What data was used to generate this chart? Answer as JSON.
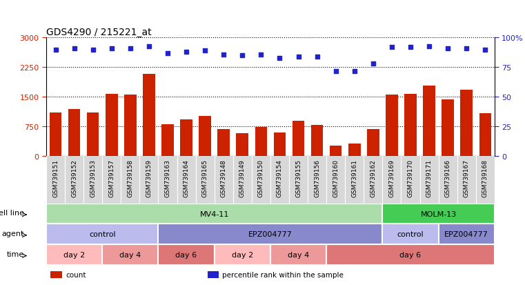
{
  "title": "GDS4290 / 215221_at",
  "samples": [
    "GSM739151",
    "GSM739152",
    "GSM739153",
    "GSM739157",
    "GSM739158",
    "GSM739159",
    "GSM739163",
    "GSM739164",
    "GSM739165",
    "GSM739148",
    "GSM739149",
    "GSM739150",
    "GSM739154",
    "GSM739155",
    "GSM739156",
    "GSM739160",
    "GSM739161",
    "GSM739162",
    "GSM739169",
    "GSM739170",
    "GSM739171",
    "GSM739166",
    "GSM739167",
    "GSM739168"
  ],
  "counts": [
    1100,
    1200,
    1100,
    1580,
    1560,
    2080,
    800,
    930,
    1020,
    680,
    580,
    730,
    600,
    900,
    790,
    270,
    320,
    680,
    1560,
    1580,
    1780,
    1430,
    1680,
    1080
  ],
  "percentiles": [
    90,
    91,
    90,
    91,
    91,
    93,
    87,
    88,
    89,
    86,
    85,
    86,
    83,
    84,
    84,
    72,
    72,
    78,
    92,
    92,
    93,
    91,
    91,
    90
  ],
  "bar_color": "#cc2200",
  "dot_color": "#2222cc",
  "bg_color": "#ffffff",
  "xtick_bg": "#d8d8d8",
  "ylim_left": [
    0,
    3000
  ],
  "ylim_right": [
    0,
    100
  ],
  "yticks_left": [
    0,
    750,
    1500,
    2250,
    3000
  ],
  "yticks_right": [
    0,
    25,
    50,
    75,
    100
  ],
  "cell_line_groups": [
    {
      "label": "MV4-11",
      "start": 0,
      "end": 18,
      "color": "#aaddaa"
    },
    {
      "label": "MOLM-13",
      "start": 18,
      "end": 24,
      "color": "#44cc55"
    }
  ],
  "agent_groups": [
    {
      "label": "control",
      "start": 0,
      "end": 6,
      "color": "#bbbbee"
    },
    {
      "label": "EPZ004777",
      "start": 6,
      "end": 18,
      "color": "#8888cc"
    },
    {
      "label": "control",
      "start": 18,
      "end": 21,
      "color": "#bbbbee"
    },
    {
      "label": "EPZ004777",
      "start": 21,
      "end": 24,
      "color": "#8888cc"
    }
  ],
  "time_groups": [
    {
      "label": "day 2",
      "start": 0,
      "end": 3,
      "color": "#ffbbbb"
    },
    {
      "label": "day 4",
      "start": 3,
      "end": 6,
      "color": "#ee9999"
    },
    {
      "label": "day 6",
      "start": 6,
      "end": 9,
      "color": "#dd7777"
    },
    {
      "label": "day 2",
      "start": 9,
      "end": 12,
      "color": "#ffbbbb"
    },
    {
      "label": "day 4",
      "start": 12,
      "end": 15,
      "color": "#ee9999"
    },
    {
      "label": "day 6",
      "start": 15,
      "end": 24,
      "color": "#dd7777"
    }
  ],
  "row_labels": [
    "cell line",
    "agent",
    "time"
  ],
  "legend_items": [
    {
      "color": "#cc2200",
      "label": "count"
    },
    {
      "color": "#2222cc",
      "label": "percentile rank within the sample"
    }
  ],
  "spine_color": "#000000",
  "title_fontsize": 10,
  "tick_fontsize": 8,
  "label_fontsize": 8,
  "ann_fontsize": 8,
  "row_label_fontsize": 8
}
